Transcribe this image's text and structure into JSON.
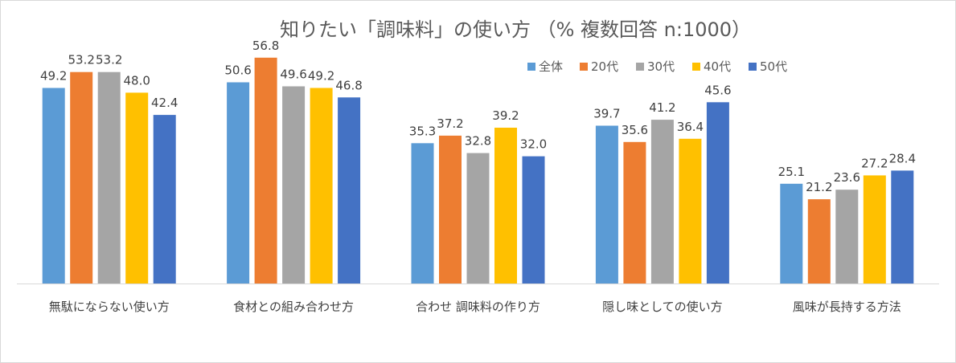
{
  "chart_data": {
    "type": "bar",
    "title": "知りたい「調味料」の使い方 （%  複数回答  n:1000）",
    "categories": [
      "無駄にならない使い方",
      "食材との組み合わせ方",
      "合わせ 調味料の作り方",
      "隠し味としての使い方",
      "風味が長持する方法"
    ],
    "series": [
      {
        "name": "全体",
        "color": "#5b9bd5",
        "values": [
          49.2,
          50.6,
          35.3,
          39.7,
          25.1
        ],
        "labels": [
          "49.2",
          "50.6",
          "35.3",
          "39.7",
          "25.1"
        ]
      },
      {
        "name": "20代",
        "color": "#ed7d31",
        "values": [
          53.2,
          56.8,
          37.2,
          35.6,
          21.2
        ],
        "labels": [
          "53.2",
          "56.8",
          "37.2",
          "35.6",
          "21.2"
        ]
      },
      {
        "name": "30代",
        "color": "#a5a5a5",
        "values": [
          53.2,
          49.6,
          32.8,
          41.2,
          23.6
        ],
        "labels": [
          "53.2",
          "49.6",
          "32.8",
          "41.2",
          "23.6"
        ]
      },
      {
        "name": "40代",
        "color": "#ffc000",
        "values": [
          48.0,
          49.2,
          39.2,
          36.4,
          27.2
        ],
        "labels": [
          "48.0",
          "49.2",
          "39.2",
          "36.4",
          "27.2"
        ]
      },
      {
        "name": "50代",
        "color": "#4472c4",
        "values": [
          42.4,
          46.8,
          32.0,
          45.6,
          28.4
        ],
        "labels": [
          "42.4",
          "46.8",
          "32.0",
          "45.6",
          "28.4"
        ]
      }
    ],
    "ylim": [
      0,
      60
    ],
    "grid": false,
    "legend_position": "top-right"
  }
}
